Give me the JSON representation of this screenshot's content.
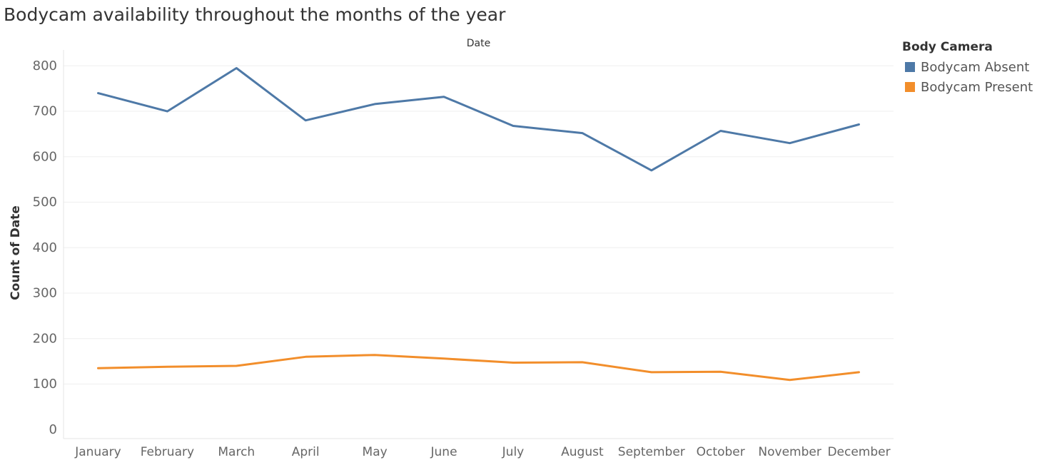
{
  "chart_data": {
    "type": "line",
    "title": "Bodycam availability throughout the months of the year",
    "xlabel": "Date",
    "ylabel": "Count of Date",
    "categories": [
      "January",
      "February",
      "March",
      "April",
      "May",
      "June",
      "July",
      "August",
      "September",
      "October",
      "November",
      "December"
    ],
    "y_ticks": [
      "0",
      "100",
      "200",
      "300",
      "400",
      "500",
      "600",
      "700",
      "800"
    ],
    "ylim": [
      -20,
      835
    ],
    "grid": true,
    "legend_title": "Body Camera",
    "legend_position": "top-right",
    "series": [
      {
        "name": "Bodycam Absent",
        "color": "#4e79a7",
        "values": [
          740,
          700,
          795,
          680,
          716,
          732,
          668,
          652,
          570,
          657,
          630,
          671
        ]
      },
      {
        "name": "Bodycam Present",
        "color": "#f28e2b",
        "values": [
          135,
          138,
          140,
          160,
          164,
          156,
          147,
          148,
          126,
          127,
          109,
          126
        ]
      }
    ]
  }
}
